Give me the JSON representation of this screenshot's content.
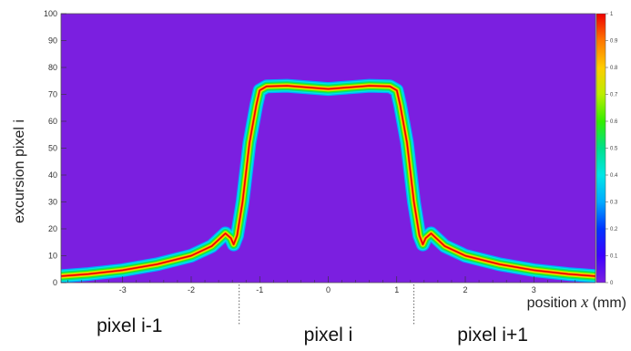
{
  "chart_data": {
    "type": "heatmap",
    "xlabel": {
      "prefix": "position ",
      "var": "x",
      "suffix": " (mm)"
    },
    "ylabel": "excursion pixel i",
    "xlim": [
      -3.9,
      3.9
    ],
    "ylim": [
      0,
      100
    ],
    "xticks": [
      -3,
      -2,
      -1,
      0,
      1,
      2,
      3
    ],
    "yticks": [
      0,
      10,
      20,
      30,
      40,
      50,
      60,
      70,
      80,
      90,
      100
    ],
    "colorbar": {
      "range": [
        0,
        1
      ],
      "ticks": [
        "0",
        "0.1",
        "0.2",
        "0.3",
        "0.4",
        "0.5",
        "0.6",
        "0.7",
        "0.8",
        "0.9",
        "1"
      ],
      "colors": [
        "#7b1fe0",
        "#3d00ff",
        "#0033ff",
        "#00aaff",
        "#00e6e6",
        "#00e08a",
        "#33ee00",
        "#bbee00",
        "#ffcc00",
        "#ff7700",
        "#ee0000"
      ]
    },
    "background_color": "#7b1fe0",
    "band_center_curve": [
      [
        -3.9,
        2.4
      ],
      [
        -3.5,
        3.2
      ],
      [
        -3.0,
        4.6
      ],
      [
        -2.5,
        6.8
      ],
      [
        -2.0,
        10.0
      ],
      [
        -1.7,
        13.6
      ],
      [
        -1.5,
        18.3
      ],
      [
        -1.42,
        16.5
      ],
      [
        -1.38,
        14.2
      ],
      [
        -1.33,
        17.5
      ],
      [
        -1.25,
        30.0
      ],
      [
        -1.15,
        52.0
      ],
      [
        -1.05,
        66.0
      ],
      [
        -1.0,
        71.5
      ],
      [
        -0.9,
        73.0
      ],
      [
        -0.6,
        73.2
      ],
      [
        0.0,
        72.0
      ],
      [
        0.6,
        73.2
      ],
      [
        0.9,
        73.0
      ],
      [
        1.0,
        71.5
      ],
      [
        1.05,
        66.0
      ],
      [
        1.15,
        52.0
      ],
      [
        1.25,
        30.0
      ],
      [
        1.33,
        17.5
      ],
      [
        1.38,
        14.2
      ],
      [
        1.42,
        16.5
      ],
      [
        1.5,
        18.3
      ],
      [
        1.7,
        13.6
      ],
      [
        2.0,
        10.0
      ],
      [
        2.5,
        6.8
      ],
      [
        3.0,
        4.6
      ],
      [
        3.5,
        3.2
      ],
      [
        3.9,
        2.4
      ]
    ],
    "boundaries_x": [
      -1.3,
      1.25
    ],
    "regions": [
      {
        "label": "pixel i-1",
        "x": -2.9
      },
      {
        "label": "pixel i",
        "x": 0.0
      },
      {
        "label": "pixel i+1",
        "x": 2.4
      }
    ]
  }
}
